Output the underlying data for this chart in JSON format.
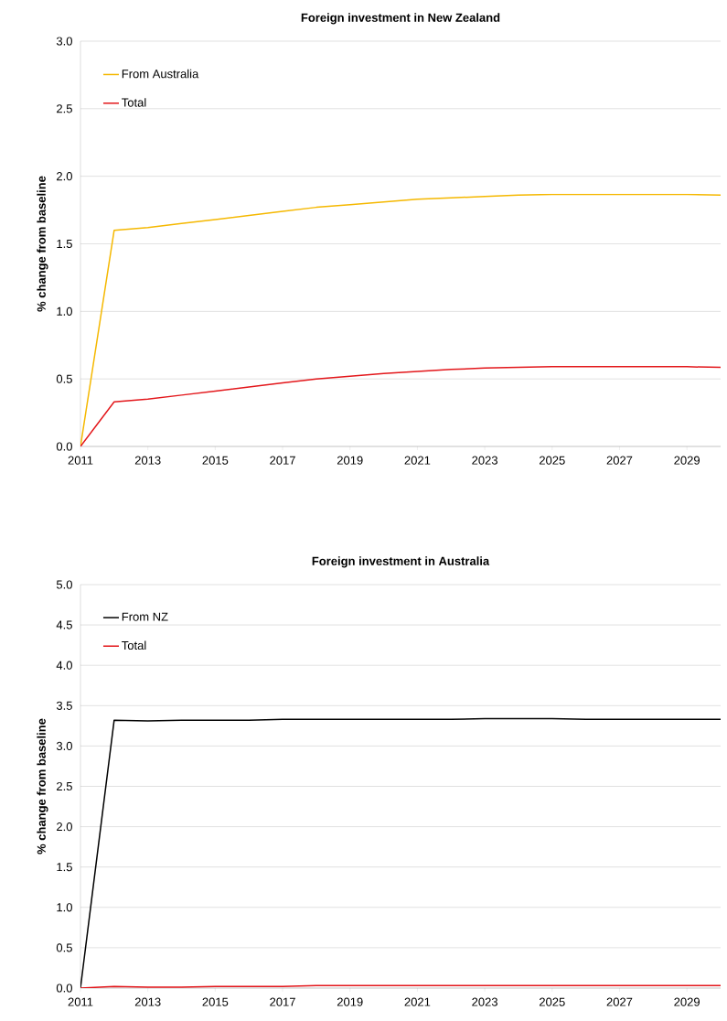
{
  "chart_data": [
    {
      "type": "line",
      "title": "Foreign investment in New Zealand",
      "ylabel": "% change from baseline",
      "categories": [
        "2011",
        null,
        "2013",
        null,
        "2015",
        null,
        "2017",
        null,
        "2019",
        null,
        "2021",
        null,
        "2023",
        null,
        "2025",
        null,
        "2027",
        null,
        "2029",
        null
      ],
      "series": [
        {
          "name": "From Australia",
          "color": "#f5b800",
          "values": [
            0,
            1.6,
            1.62,
            1.65,
            1.68,
            1.71,
            1.74,
            1.77,
            1.79,
            1.81,
            1.83,
            1.84,
            1.85,
            1.86,
            1.865,
            1.865,
            1.865,
            1.865,
            1.865,
            1.86
          ]
        },
        {
          "name": "Total",
          "color": "#e3171b",
          "values": [
            0,
            0.33,
            0.35,
            0.38,
            0.41,
            0.44,
            0.47,
            0.5,
            0.52,
            0.54,
            0.555,
            0.57,
            0.58,
            0.585,
            0.59,
            0.59,
            0.59,
            0.59,
            0.59,
            0.585
          ]
        }
      ],
      "ylim": [
        0,
        3
      ],
      "yticks": [
        {
          "value": 0,
          "label": "0.0"
        },
        {
          "value": 0.5,
          "label": "0.5"
        },
        {
          "value": 1,
          "label": "1.0"
        },
        {
          "value": 1.5,
          "label": "1.5"
        },
        {
          "value": 2,
          "label": "2.0"
        },
        {
          "value": 2.5,
          "label": "2.5"
        },
        {
          "value": 3,
          "label": "3.0"
        }
      ],
      "grid": "y",
      "legend": "top left"
    },
    {
      "type": "line",
      "title": "Foreign investment in Australia",
      "ylabel": "% change from baseline",
      "categories": [
        "2011",
        null,
        "2013",
        null,
        "2015",
        null,
        "2017",
        null,
        "2019",
        null,
        "2021",
        null,
        "2023",
        null,
        "2025",
        null,
        "2027",
        null,
        "2029",
        null
      ],
      "series": [
        {
          "name": "From NZ",
          "color": "#000000",
          "values": [
            0,
            3.32,
            3.31,
            3.32,
            3.32,
            3.32,
            3.33,
            3.33,
            3.33,
            3.33,
            3.33,
            3.33,
            3.34,
            3.34,
            3.34,
            3.33,
            3.33,
            3.33,
            3.33,
            3.33
          ]
        },
        {
          "name": "Total",
          "color": "#e3171b",
          "values": [
            0,
            0.02,
            0.01,
            0.01,
            0.02,
            0.02,
            0.02,
            0.03,
            0.03,
            0.03,
            0.03,
            0.03,
            0.03,
            0.03,
            0.03,
            0.03,
            0.03,
            0.03,
            0.03,
            0.03
          ]
        }
      ],
      "ylim": [
        0,
        5
      ],
      "yticks": [
        {
          "value": 0,
          "label": "0.0"
        },
        {
          "value": 0.5,
          "label": "0.5"
        },
        {
          "value": 1,
          "label": "1.0"
        },
        {
          "value": 1.5,
          "label": "1.5"
        },
        {
          "value": 2,
          "label": "2.0"
        },
        {
          "value": 2.5,
          "label": "2.5"
        },
        {
          "value": 3,
          "label": "3.0"
        },
        {
          "value": 3.5,
          "label": "3.5"
        },
        {
          "value": 4,
          "label": "4.0"
        },
        {
          "value": 4.5,
          "label": "4.5"
        },
        {
          "value": 5,
          "label": "5.0"
        }
      ],
      "grid": "y",
      "legend": "top left"
    }
  ]
}
